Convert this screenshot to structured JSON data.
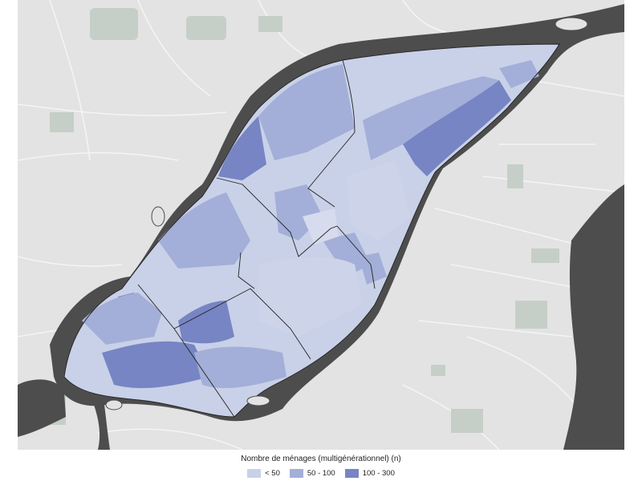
{
  "legend": {
    "title": "Nombre de ménages (multigénérationnel) (n)",
    "items": [
      {
        "label": "< 50",
        "color": "#c9d1e8"
      },
      {
        "label": "50 - 100",
        "color": "#a3afd8"
      },
      {
        "label": "100 - 300",
        "color": "#7785c4"
      }
    ]
  },
  "colors": {
    "land": "#e3e3e3",
    "water": "#4d4d4d",
    "park": "#c7d0c9",
    "road": "#f5f5f5",
    "boundary": "#222222"
  }
}
